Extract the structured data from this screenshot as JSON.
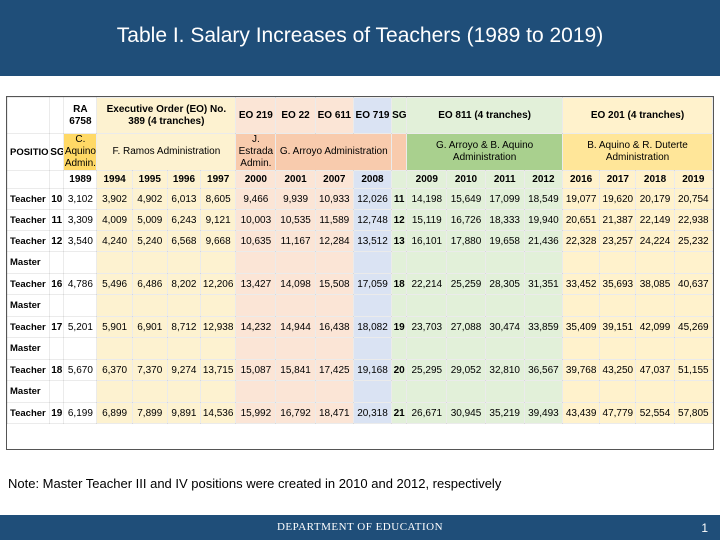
{
  "title": "Table I. Salary Increases of Teachers (1989 to 2019)",
  "table": {
    "position_header": "POSITION",
    "sg_header": "SG",
    "issuances": {
      "ra": "RA 6758",
      "eo389": "Executive Order (EO) No. 389 (4 tranches)",
      "eo219": "EO 219",
      "eo22": "EO 22",
      "eo611": "EO 611",
      "eo719": "EO 719",
      "sg2": "SG",
      "eo811": "EO 811 (4 tranches)",
      "eo201": "EO 201 (4 tranches)"
    },
    "administrations": {
      "aquino": "C. Aquino Admin.",
      "ramos": "F. Ramos Administration",
      "estrada": "J. Estrada Admin.",
      "arroyo": "G. Arroyo Administration",
      "arroyo_aquino": "G. Arroyo & B. Aquino Administration",
      "aquino_duterte": "B. Aquino & R. Duterte Administration"
    },
    "years_a": [
      "1989",
      "1994",
      "1995",
      "1996",
      "1997",
      "2000",
      "2001",
      "2007",
      "2008"
    ],
    "years_b": [
      "2009",
      "2010",
      "2011",
      "2012",
      "2016",
      "2017",
      "2018",
      "2019"
    ],
    "rows": [
      {
        "l1": "Teacher I",
        "l2": "",
        "sg": "10",
        "a": [
          "3,102",
          "3,902",
          "4,902",
          "6,013",
          "8,605",
          "9,466",
          "9,939",
          "10,933",
          "12,026"
        ],
        "sg2": "11",
        "b": [
          "14,198",
          "15,649",
          "17,099",
          "18,549",
          "19,077",
          "19,620",
          "20,179",
          "20,754"
        ]
      },
      {
        "l1": "Teacher II",
        "l2": "",
        "sg": "11",
        "a": [
          "3,309",
          "4,009",
          "5,009",
          "6,243",
          "9,121",
          "10,003",
          "10,535",
          "11,589",
          "12,748"
        ],
        "sg2": "12",
        "b": [
          "15,119",
          "16,726",
          "18,333",
          "19,940",
          "20,651",
          "21,387",
          "22,149",
          "22,938"
        ]
      },
      {
        "l1": "Teacher III",
        "l2": "",
        "sg": "12",
        "a": [
          "3,540",
          "4,240",
          "5,240",
          "6,568",
          "9,668",
          "10,635",
          "11,167",
          "12,284",
          "13,512"
        ],
        "sg2": "13",
        "b": [
          "16,101",
          "17,880",
          "19,658",
          "21,436",
          "22,328",
          "23,257",
          "24,224",
          "25,232"
        ]
      },
      {
        "l1": "Master",
        "l2": "Teacher I",
        "sg": "16",
        "a": [
          "4,786",
          "5,496",
          "6,486",
          "8,202",
          "12,206",
          "13,427",
          "14,098",
          "15,508",
          "17,059"
        ],
        "sg2": "18",
        "b": [
          "22,214",
          "25,259",
          "28,305",
          "31,351",
          "33,452",
          "35,693",
          "38,085",
          "40,637"
        ]
      },
      {
        "l1": "Master",
        "l2": "Teacher II",
        "sg": "17",
        "a": [
          "5,201",
          "5,901",
          "6,901",
          "8,712",
          "12,938",
          "14,232",
          "14,944",
          "16,438",
          "18,082"
        ],
        "sg2": "19",
        "b": [
          "23,703",
          "27,088",
          "30,474",
          "33,859",
          "35,409",
          "39,151",
          "42,099",
          "45,269"
        ]
      },
      {
        "l1": "Master",
        "l2": "Teacher III",
        "sg": "18",
        "a": [
          "5,670",
          "6,370",
          "7,370",
          "9,274",
          "13,715",
          "15,087",
          "15,841",
          "17,425",
          "19,168"
        ],
        "sg2": "20",
        "b": [
          "25,295",
          "29,052",
          "32,810",
          "36,567",
          "39,768",
          "43,250",
          "47,037",
          "51,155"
        ]
      },
      {
        "l1": "Master",
        "l2": "Teacher IV",
        "sg": "19",
        "a": [
          "6,199",
          "6,899",
          "7,899",
          "9,891",
          "14,536",
          "15,992",
          "16,792",
          "18,471",
          "20,318"
        ],
        "sg2": "21",
        "b": [
          "26,671",
          "30,945",
          "35,219",
          "39,493",
          "43,439",
          "47,779",
          "52,554",
          "57,805"
        ]
      }
    ]
  },
  "note": "Note: Master Teacher III and IV positions were created in 2010 and 2012, respectively",
  "footer": "DEPARTMENT OF EDUCATION",
  "page_number": "1",
  "colors": {
    "title_bar": "#1f4e79",
    "eo389": "#fdf2d0",
    "eo219_611": "#fbe5d6",
    "eo719": "#dae3f3",
    "eo811": "#e2f0d9",
    "eo201": "#fff2cc",
    "admin_arroyo": "#f8cbad",
    "admin_arroyo_aquino": "#a9d08e"
  }
}
